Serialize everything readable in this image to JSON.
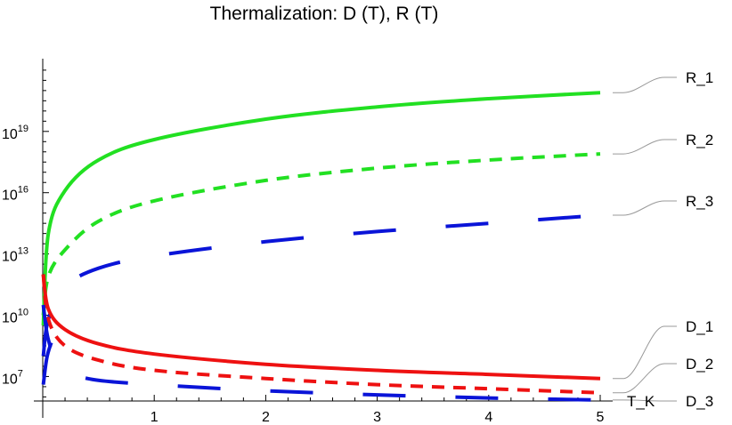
{
  "chart_data": {
    "type": "line",
    "title": "Thermalization: D (T), R (T)",
    "xlabel": "",
    "ylabel": "",
    "x_axis_label": "T_K",
    "xlim": [
      0,
      5
    ],
    "ylog": true,
    "ylim_log10": [
      5.8,
      22.3
    ],
    "grid": false,
    "legend": "curve labels at right end of each curve",
    "x_ticks": [
      {
        "value": 1,
        "label": "1"
      },
      {
        "value": 2,
        "label": "2"
      },
      {
        "value": 3,
        "label": "3"
      },
      {
        "value": 4,
        "label": "4"
      },
      {
        "value": 5,
        "label": "5"
      }
    ],
    "y_ticks": [
      {
        "log10": 7,
        "base": "10",
        "exp": "7"
      },
      {
        "log10": 10,
        "base": "10",
        "exp": "10"
      },
      {
        "log10": 13,
        "base": "10",
        "exp": "13"
      },
      {
        "log10": 16,
        "base": "10",
        "exp": "16"
      },
      {
        "log10": 19,
        "base": "10",
        "exp": "19"
      }
    ],
    "series": [
      {
        "name": "R_1",
        "color": "#22e022",
        "dash": "solid",
        "x": [
          0.005,
          0.05,
          0.2,
          0.5,
          1,
          2,
          3,
          4,
          5
        ],
        "log10_y": [
          9.5,
          14.0,
          16.1,
          17.6,
          18.6,
          19.6,
          20.2,
          20.6,
          20.9
        ]
      },
      {
        "name": "R_2",
        "color": "#22e022",
        "dash": "medium",
        "x": [
          0.005,
          0.05,
          0.2,
          0.5,
          1,
          2,
          3,
          4,
          5
        ],
        "log10_y": [
          10.0,
          11.9,
          13.2,
          14.6,
          15.6,
          16.6,
          17.2,
          17.6,
          17.9
        ]
      },
      {
        "name": "R_3",
        "color": "#0a14d8",
        "dash": "long",
        "x": [
          0.005,
          0.05,
          0.2,
          0.5,
          1,
          2,
          3,
          4,
          5
        ],
        "log10_y": [
          8.0,
          9.8,
          11.4,
          12.3,
          12.9,
          13.6,
          14.1,
          14.5,
          14.9
        ]
      },
      {
        "name": "D_1",
        "color": "#ee1111",
        "dash": "solid",
        "x": [
          0.005,
          0.05,
          0.2,
          0.5,
          1,
          2,
          3,
          4,
          5
        ],
        "log10_y": [
          12.0,
          10.3,
          9.3,
          8.6,
          8.1,
          7.6,
          7.3,
          7.1,
          6.9
        ]
      },
      {
        "name": "D_2",
        "color": "#ee1111",
        "dash": "medium",
        "x": [
          0.005,
          0.05,
          0.2,
          0.5,
          1,
          2,
          3,
          4,
          5
        ],
        "log10_y": [
          12.0,
          9.8,
          8.5,
          7.8,
          7.3,
          6.9,
          6.6,
          6.4,
          6.2
        ]
      },
      {
        "name": "D_3",
        "color": "#0a14d8",
        "dash": "long",
        "x": [
          0.005,
          0.05,
          0.15,
          0.4,
          1,
          2,
          3,
          4,
          5
        ],
        "log10_y": [
          10.5,
          8.8,
          7.6,
          6.9,
          6.6,
          6.3,
          6.1,
          5.95,
          5.85
        ]
      },
      {
        "name": "",
        "color": "#0a14d8",
        "dash": "long",
        "x": [
          0.005,
          0.04,
          0.1
        ],
        "log10_y": [
          6.6,
          8.0,
          9.0
        ]
      }
    ]
  }
}
